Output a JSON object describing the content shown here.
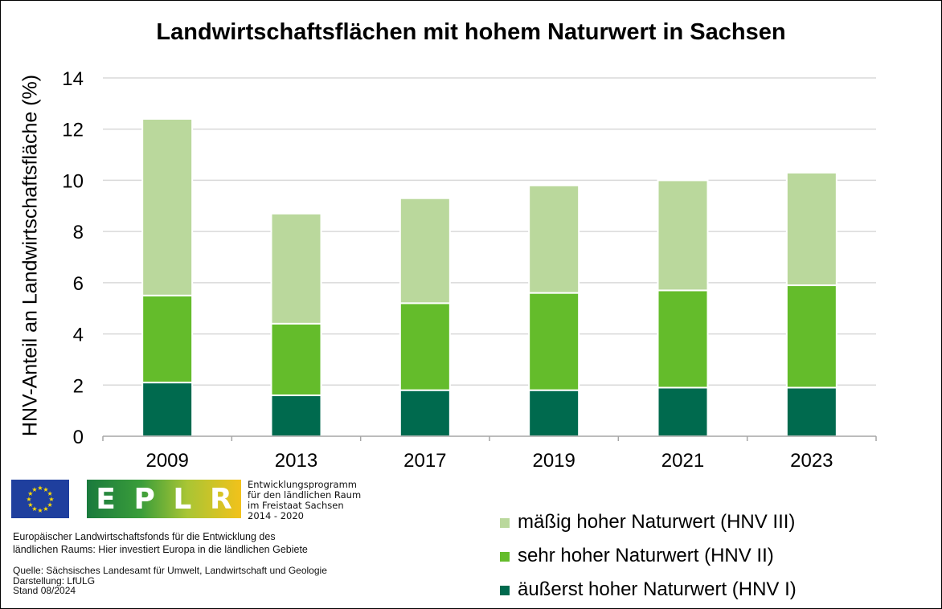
{
  "title": "Landwirtschaftsflächen mit hohem Naturwert in Sachsen",
  "ylabel": "HNV-Anteil an Landwirtschaftsfläche (%)",
  "colors": {
    "hnv1": "#006a4e",
    "hnv2": "#64bc2b",
    "hnv3": "#bad89c",
    "grid": "#d9d9d9",
    "axis": "#a6a6a6"
  },
  "chart_data": {
    "type": "bar",
    "stacked": true,
    "title": "Landwirtschaftsflächen mit hohem Naturwert in Sachsen",
    "xlabel": "",
    "ylabel": "HNV-Anteil an Landwirtschaftsfläche (%)",
    "ylim": [
      0,
      14
    ],
    "yticks": [
      0,
      2,
      4,
      6,
      8,
      10,
      12,
      14
    ],
    "grid": true,
    "legend_position": "bottom-right",
    "categories": [
      "2009",
      "2013",
      "2017",
      "2019",
      "2021",
      "2023"
    ],
    "series": [
      {
        "name": "äußerst hoher Naturwert (HNV I)",
        "color": "#006a4e",
        "values": [
          2.1,
          1.6,
          1.8,
          1.8,
          1.9,
          1.9
        ]
      },
      {
        "name": "sehr hoher Naturwert (HNV II)",
        "color": "#64bc2b",
        "values": [
          3.4,
          2.8,
          3.4,
          3.8,
          3.8,
          4.0
        ]
      },
      {
        "name": "mäßig hoher Naturwert (HNV III)",
        "color": "#bad89c",
        "values": [
          6.9,
          4.3,
          4.1,
          4.2,
          4.3,
          4.4
        ]
      }
    ]
  },
  "legend": [
    {
      "label": "mäßig hoher Naturwert (HNV III)",
      "color": "#bad89c"
    },
    {
      "label": "sehr hoher Naturwert (HNV II)",
      "color": "#64bc2b"
    },
    {
      "label": "äußerst hoher Naturwert (HNV I)",
      "color": "#006a4e"
    }
  ],
  "logos": {
    "eu_flag_icon": "eu-flag-icon",
    "eplr_letters": "E P L R",
    "eplr_lines": [
      "Entwicklungsprogramm",
      "für den ländlichen Raum",
      "im Freistaat Sachsen",
      "2014 - 2020"
    ]
  },
  "footer": {
    "fund_lines": [
      "Europäischer Landwirtschaftsfonds für die Entwicklung des",
      "ländlichen Raums: Hier investiert Europa in die ländlichen Gebiete"
    ],
    "source_lines": [
      "Quelle: Sächsisches Landesamt für Umwelt, Landwirtschaft und Geologie",
      "Darstellung: LfULG",
      "Stand 08/2024"
    ]
  }
}
